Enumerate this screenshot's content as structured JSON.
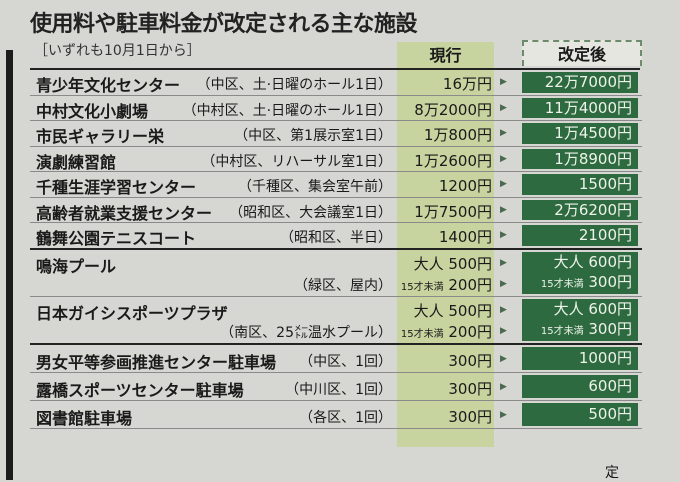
{
  "title": "使用料や駐車料金が改定される主な施設",
  "subtitle": "［いずれも10月1日から］",
  "headers": {
    "current": "現行",
    "new": "改定後"
  },
  "colors": {
    "current_bg": "#c8d4a0",
    "new_bg": "#2e6a40"
  },
  "rows": [
    {
      "name": "青少年文化センター",
      "note": "（中区、土·日曜のホール1日）",
      "current": "16万円",
      "new": "22万7000円"
    },
    {
      "name": "中村文化小劇場",
      "note": "（中村区、土·日曜のホール1日）",
      "current": "8万2000円",
      "new": "11万4000円"
    },
    {
      "name": "市民ギャラリー栄",
      "note": "（中区、第1展示室1日）",
      "current": "1万800円",
      "new": "1万4500円"
    },
    {
      "name": "演劇練習館",
      "note": "（中村区、リハーサル室1日）",
      "current": "1万2600円",
      "new": "1万8900円"
    },
    {
      "name": "千種生涯学習センター",
      "note": "（千種区、集会室午前）",
      "current": "1200円",
      "new": "1500円"
    },
    {
      "name": "高齢者就業支援センター",
      "note": "（昭和区、大会議室1日）",
      "current": "1万7500円",
      "new": "2万6200円"
    },
    {
      "name": "鶴舞公園テニスコート",
      "note": "（昭和区、半日）",
      "current": "1400円",
      "new": "2100円"
    }
  ],
  "pool_rows": [
    {
      "name": "鳴海プール",
      "note": "（緑区、屋内）",
      "adult_label": "大人",
      "child_label": "15才未満",
      "current_adult": "500円",
      "current_child": "200円",
      "new_adult": "600円",
      "new_child": "300円"
    },
    {
      "name": "日本ガイシスポーツプラザ",
      "note": "（南区、25㍍温水プール）",
      "adult_label": "大人",
      "child_label": "15才未満",
      "current_adult": "500円",
      "current_child": "200円",
      "new_adult": "600円",
      "new_child": "300円"
    }
  ],
  "parking_rows": [
    {
      "name": "男女平等参画推進センター駐車場",
      "note": "（中区、1回）",
      "current": "300円",
      "new": "1000円"
    },
    {
      "name": "露橋スポーツセンター駐車場",
      "note": "（中川区、1回）",
      "current": "300円",
      "new": "600円"
    },
    {
      "name": "図書館駐車場",
      "note": "（各区、1回）",
      "current": "300円",
      "new": "500円"
    }
  ],
  "footer_fragment": "定"
}
